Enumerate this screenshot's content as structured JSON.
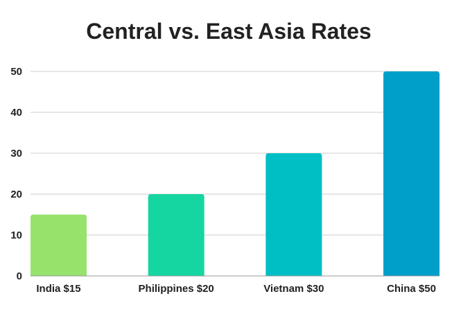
{
  "chart_data": {
    "type": "bar",
    "title": "Central vs. East Asia Rates",
    "categories": [
      "India $15",
      "Philippines $20",
      "Vietnam $30",
      "China $50"
    ],
    "values": [
      15,
      20,
      30,
      50
    ],
    "colors": [
      "#96e26a",
      "#15d6a0",
      "#00bfc4",
      "#009fc9"
    ],
    "xlabel": "",
    "ylabel": "",
    "ylim": [
      0,
      50
    ],
    "yticks": [
      0,
      10,
      20,
      30,
      40,
      50
    ],
    "grid": true,
    "legend": "none"
  }
}
